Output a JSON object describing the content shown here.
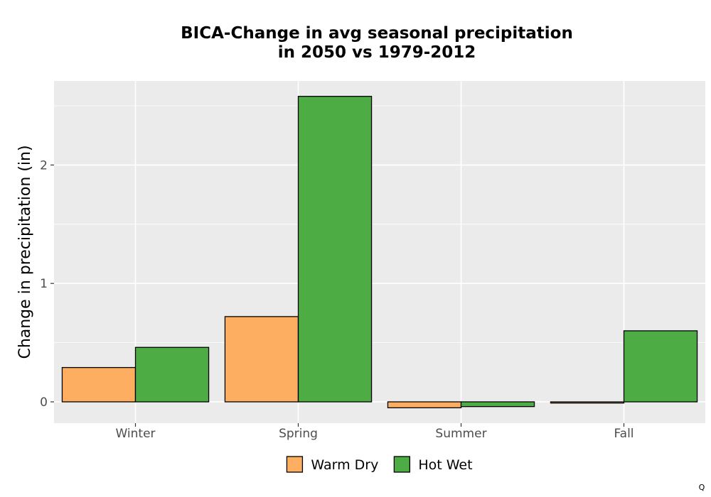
{
  "chart_data": {
    "type": "bar",
    "title": "BICA-Change in avg seasonal precipitation\nin 2050 vs 1979-2012",
    "title_lines": [
      "BICA-Change in avg seasonal precipitation",
      "in 2050 vs 1979-2012"
    ],
    "xlabel": "",
    "ylabel": "Change in precipitation (in)",
    "categories": [
      "Winter",
      "Spring",
      "Summer",
      "Fall"
    ],
    "series": [
      {
        "name": "Warm Dry",
        "color": "#fdae61",
        "values": [
          0.29,
          0.72,
          -0.05,
          -0.01
        ]
      },
      {
        "name": "Hot Wet",
        "color": "#4dac43",
        "values": [
          0.46,
          2.58,
          -0.04,
          0.6
        ]
      }
    ],
    "ylim": [
      -0.18,
      2.71
    ],
    "yticks": [
      0,
      1,
      2
    ],
    "ytick_labels": [
      "0",
      "1",
      "2"
    ],
    "grid": true,
    "legend_position": "bottom"
  },
  "corner_mark": "Q"
}
